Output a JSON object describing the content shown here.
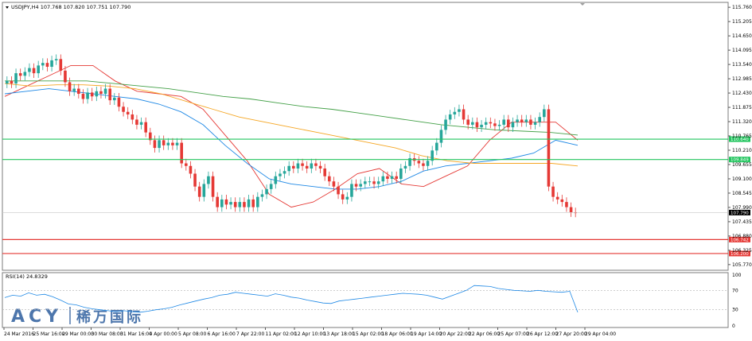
{
  "header": {
    "symbol_line": "USDJPY,H4  107.768 107.820 107.751 107.790",
    "rsi_label": "RSI(14) 24.8329"
  },
  "watermark": {
    "latin": "ACY",
    "chinese": "稀万国际"
  },
  "colors": {
    "bull": "#26a69a",
    "bear": "#e53935",
    "ma_fast": "#e53935",
    "ma_mid": "#1e88e5",
    "ma_slow": "#f5a623",
    "ma_long": "#43a047",
    "support_green": "#22c55e",
    "support_red": "#e53935",
    "rsi_line": "#1e88e5"
  },
  "chart_data": {
    "type": "candlestick",
    "symbol": "USDJPY",
    "timeframe": "H4",
    "y_ticks": [
      "115.760",
      "115.205",
      "114.650",
      "114.095",
      "113.540",
      "112.985",
      "112.430",
      "111.875",
      "111.320",
      "110.765",
      "110.210",
      "109.655",
      "109.100",
      "108.545",
      "107.990",
      "107.435",
      "106.880",
      "106.325",
      "105.770"
    ],
    "ylim": [
      105.55,
      115.95
    ],
    "x_labels": [
      "24 Mar 2016",
      "25 Mar 16:00",
      "29 Mar 00:00",
      "30 Mar 08:00",
      "31 Mar 16:00",
      "4 Apr 00:00",
      "5 Apr 08:00",
      "6 Apr 16:00",
      "7 Apr 22:00",
      "11 Apr 02:00",
      "12 Apr 10:00",
      "13 Apr 18:00",
      "15 Apr 02:00",
      "18 Apr 06:00",
      "19 Apr 14:00",
      "20 Apr 22:00",
      "22 Apr 06:00",
      "25 Apr 07:00",
      "26 Apr 12:00",
      "27 Apr 20:00",
      "29 Apr 04:00"
    ],
    "horizontal_lines": [
      {
        "price": 110.64,
        "label": "110.640",
        "color": "green"
      },
      {
        "price": 109.849,
        "label": "109.849",
        "color": "green"
      },
      {
        "price": 107.79,
        "label": "107.790",
        "color": "gray"
      },
      {
        "price": 106.742,
        "label": "106.742",
        "color": "red"
      },
      {
        "price": 106.2,
        "label": "106.200",
        "color": "red"
      }
    ],
    "close_path": [
      112.9,
      112.8,
      113.2,
      113.1,
      113.25,
      113.4,
      113.2,
      113.5,
      113.6,
      113.45,
      113.7,
      113.75,
      113.3,
      112.85,
      112.5,
      112.6,
      112.4,
      112.2,
      112.45,
      112.3,
      112.5,
      112.4,
      112.6,
      112.15,
      112.25,
      111.9,
      111.7,
      111.6,
      111.4,
      111.2,
      111.3,
      110.9,
      110.6,
      110.3,
      110.6,
      110.4,
      110.5,
      110.4,
      110.5,
      109.7,
      109.6,
      109.3,
      108.8,
      108.4,
      108.9,
      109.2,
      108.4,
      108.0,
      108.3,
      108.1,
      108.2,
      108.0,
      108.2,
      108.0,
      108.3,
      108.0,
      108.4,
      108.5,
      108.7,
      108.9,
      109.2,
      109.3,
      109.4,
      109.6,
      109.5,
      109.7,
      109.6,
      109.5,
      109.7,
      109.6,
      109.5,
      109.2,
      109.0,
      108.8,
      108.5,
      108.3,
      108.4,
      108.9,
      108.8,
      108.9,
      109.0,
      109.0,
      108.9,
      109.0,
      109.2,
      109.1,
      109.2,
      109.1,
      109.5,
      109.6,
      109.9,
      109.8,
      109.7,
      109.6,
      109.8,
      110.2,
      110.5,
      111.0,
      111.4,
      111.6,
      111.7,
      111.8,
      111.4,
      111.2,
      111.3,
      111.1,
      111.2,
      111.3,
      111.25,
      111.15,
      111.2,
      111.4,
      111.1,
      111.3,
      111.4,
      111.3,
      111.4,
      111.2,
      111.3,
      111.5,
      111.8,
      108.8,
      108.4,
      108.3,
      108.2,
      108.0,
      107.8,
      107.79
    ],
    "moving_averages": [
      {
        "name": "fast",
        "color": "red",
        "values": [
          112.3,
          112.7,
          113.1,
          113.5,
          113.5,
          112.9,
          112.5,
          112.4,
          112.3,
          111.8,
          110.8,
          109.8,
          108.5,
          108.0,
          108.2,
          108.7,
          109.3,
          109.5,
          108.9,
          108.8,
          109.2,
          109.6,
          110.6,
          111.3,
          111.3,
          111.3,
          110.6
        ]
      },
      {
        "name": "mid",
        "color": "blue",
        "values": [
          112.4,
          112.5,
          112.6,
          112.5,
          112.4,
          112.3,
          112.2,
          112.0,
          111.7,
          111.2,
          110.4,
          109.7,
          109.1,
          108.9,
          108.8,
          108.7,
          108.7,
          108.8,
          109.0,
          109.4,
          109.6,
          109.7,
          109.8,
          109.9,
          110.1,
          110.6,
          110.4
        ]
      },
      {
        "name": "slow",
        "color": "orange",
        "values": [
          112.8,
          112.7,
          112.75,
          112.75,
          112.7,
          112.6,
          112.4,
          112.1,
          111.8,
          111.5,
          111.3,
          111.1,
          110.9,
          110.7,
          110.5,
          110.3,
          110.0,
          109.8,
          109.7,
          109.7,
          109.7,
          109.7,
          109.6
        ]
      },
      {
        "name": "long",
        "color": "green",
        "values": [
          112.9,
          112.9,
          112.9,
          112.9,
          112.8,
          112.7,
          112.6,
          112.45,
          112.3,
          112.2,
          112.05,
          111.9,
          111.8,
          111.65,
          111.5,
          111.35,
          111.2,
          111.1,
          111.0,
          110.95,
          110.9,
          110.8
        ]
      }
    ],
    "rsi": {
      "period": 14,
      "value": 24.8329,
      "levels": [
        70,
        30
      ],
      "y_ticks": [
        "100",
        "70",
        "30",
        "0"
      ],
      "values": [
        55,
        60,
        58,
        65,
        60,
        62,
        57,
        50,
        42,
        40,
        35,
        32,
        30,
        28,
        26,
        28,
        26,
        25,
        27,
        30,
        32,
        35,
        40,
        44,
        48,
        52,
        55,
        60,
        62,
        66,
        64,
        62,
        60,
        58,
        63,
        60,
        56,
        54,
        50,
        47,
        44,
        43,
        48,
        50,
        52,
        54,
        56,
        58,
        60,
        62,
        64,
        63,
        62,
        60,
        56,
        52,
        58,
        64,
        70,
        80,
        79,
        78,
        74,
        72,
        70,
        69,
        68,
        70,
        68,
        67,
        66,
        68,
        24.8
      ]
    }
  }
}
